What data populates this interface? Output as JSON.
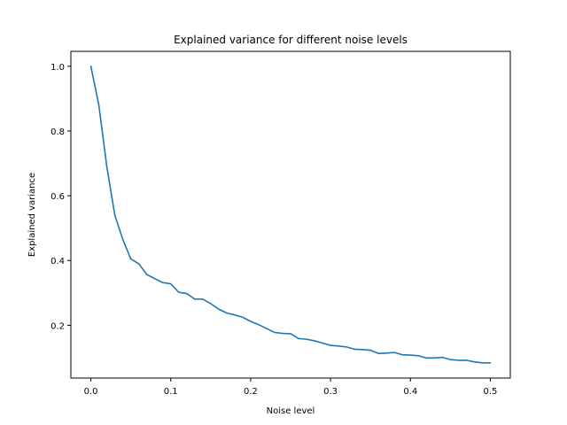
{
  "chart_data": {
    "type": "line",
    "title": "Explained variance for different noise levels",
    "xlabel": "Noise level",
    "ylabel": "Explained variance",
    "xlim": [
      -0.025,
      0.525
    ],
    "ylim": [
      0.037,
      1.046
    ],
    "xticks": [
      0.0,
      0.1,
      0.2,
      0.3,
      0.4,
      0.5
    ],
    "xtick_labels": [
      "0.0",
      "0.1",
      "0.2",
      "0.3",
      "0.4",
      "0.5"
    ],
    "yticks": [
      0.2,
      0.4,
      0.6,
      0.8,
      1.0
    ],
    "ytick_labels": [
      "0.2",
      "0.4",
      "0.6",
      "0.8",
      "1.0"
    ],
    "grid": false,
    "series": [
      {
        "color": "#1f77b4",
        "x": [
          0.0,
          0.01,
          0.02,
          0.03,
          0.04,
          0.05,
          0.06,
          0.07,
          0.08,
          0.09,
          0.1,
          0.11,
          0.12,
          0.13,
          0.14,
          0.15,
          0.16,
          0.17,
          0.18,
          0.19,
          0.2,
          0.21,
          0.22,
          0.23,
          0.24,
          0.25,
          0.26,
          0.27,
          0.28,
          0.29,
          0.3,
          0.31,
          0.32,
          0.33,
          0.34,
          0.35,
          0.36,
          0.37,
          0.38,
          0.39,
          0.4,
          0.41,
          0.42,
          0.43,
          0.44,
          0.45,
          0.46,
          0.47,
          0.48,
          0.49,
          0.5
        ],
        "y": [
          1.0,
          0.88,
          0.69,
          0.54,
          0.465,
          0.405,
          0.39,
          0.357,
          0.344,
          0.332,
          0.328,
          0.302,
          0.298,
          0.281,
          0.281,
          0.267,
          0.25,
          0.238,
          0.232,
          0.225,
          0.212,
          0.202,
          0.19,
          0.178,
          0.175,
          0.174,
          0.159,
          0.157,
          0.152,
          0.145,
          0.138,
          0.136,
          0.133,
          0.126,
          0.125,
          0.123,
          0.113,
          0.114,
          0.116,
          0.109,
          0.108,
          0.106,
          0.099,
          0.099,
          0.101,
          0.094,
          0.092,
          0.092,
          0.087,
          0.084,
          0.084
        ]
      }
    ]
  }
}
